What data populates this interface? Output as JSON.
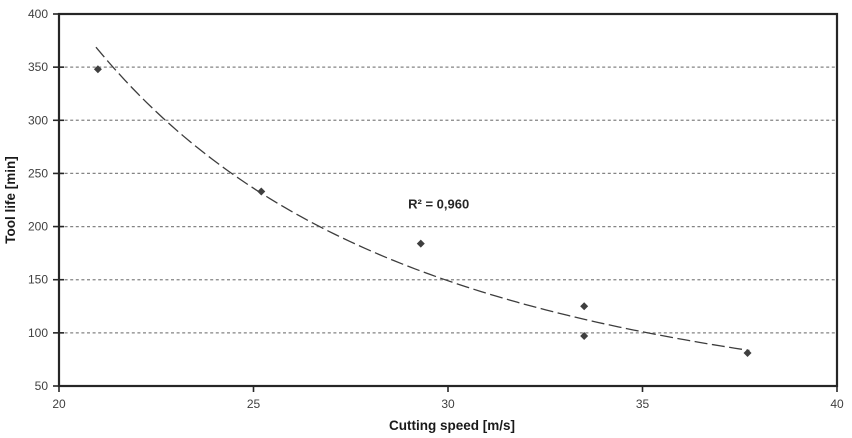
{
  "chart_data": {
    "type": "scatter",
    "title": "",
    "xlabel": "Cutting speed [m/s]",
    "ylabel": "Tool life [min]",
    "xlim": [
      20,
      40
    ],
    "ylim": [
      50,
      400
    ],
    "x_ticks": [
      20,
      25,
      30,
      35,
      40
    ],
    "y_ticks": [
      50,
      100,
      150,
      200,
      250,
      300,
      350,
      400
    ],
    "grid": "horizontal-dashed",
    "legend": "none",
    "points": [
      {
        "x": 21.0,
        "y": 348
      },
      {
        "x": 25.2,
        "y": 233
      },
      {
        "x": 29.3,
        "y": 184
      },
      {
        "x": 33.5,
        "y": 125
      },
      {
        "x": 33.5,
        "y": 97
      },
      {
        "x": 37.7,
        "y": 81
      }
    ],
    "trendline": {
      "kind": "power",
      "a": 797000,
      "b": -2.524,
      "x_start": 20.95,
      "x_end": 37.75,
      "style": "dashed"
    },
    "annotation": {
      "text": "R² = 0,960",
      "x": 29.76,
      "y": 221
    },
    "marker": {
      "shape": "diamond",
      "size": 8,
      "color": "#3f3f3f"
    },
    "colors": {
      "background": "#ffffff",
      "plot_border": "#262626",
      "gridline": "#848484",
      "tick_label": "#404040",
      "axis_title": "#1a1a1a",
      "trendline": "#3d3d3d",
      "annotation": "#262626"
    }
  }
}
